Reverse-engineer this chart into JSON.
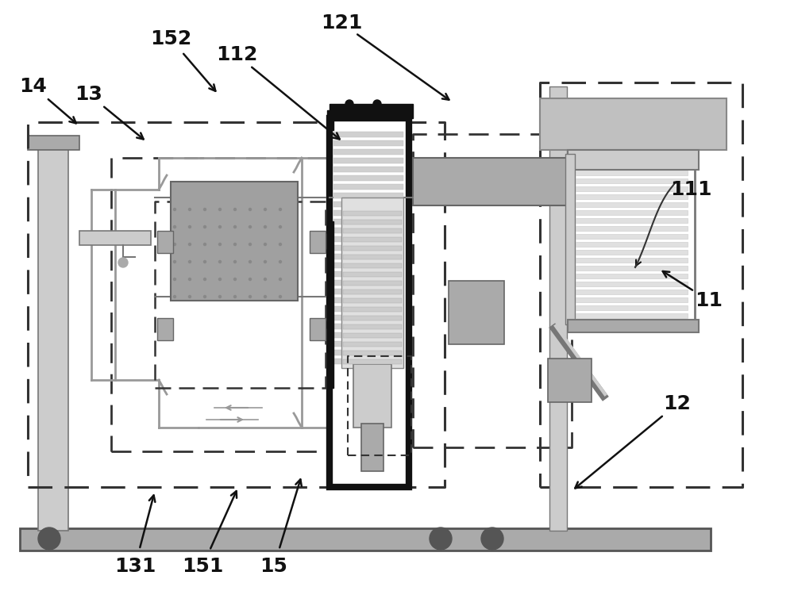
{
  "bg": "#ffffff",
  "c_blk": "#111111",
  "c_dk": "#333333",
  "c_md": "#777777",
  "c_lg": "#aaaaaa",
  "c_llg": "#cccccc",
  "c_vlg": "#e8e8e8",
  "lfs": 18
}
